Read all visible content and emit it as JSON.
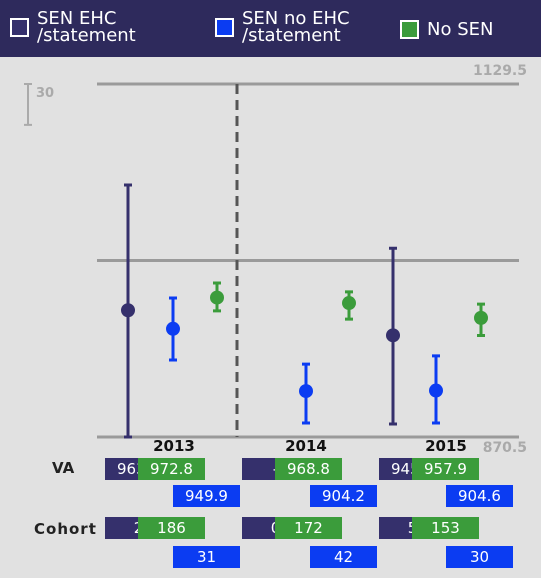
{
  "chart_data": {
    "type": "errorbar",
    "categories": [
      "2013",
      "2014",
      "2015"
    ],
    "series": [
      {
        "name": "SEN EHC\n/statement",
        "color": "#35306c",
        "values": [
          963.5,
          null,
          945.1
        ],
        "value_labels": [
          "963.5",
          "-",
          "945.1"
        ],
        "upper": [
          1055.4,
          null,
          1009
        ],
        "lower": [
          870.5,
          null,
          880
        ],
        "cohort": [
          2,
          0,
          5
        ]
      },
      {
        "name": "SEN no EHC\n/statement",
        "color": "#0b3cf2",
        "values": [
          949.9,
          904.2,
          904.6
        ],
        "upper": [
          972.5,
          924,
          930
        ],
        "lower": [
          927,
          880.8,
          880.8
        ],
        "cohort": [
          31,
          42,
          30
        ]
      },
      {
        "name": "No SEN",
        "color": "#3b9c3b",
        "values": [
          972.8,
          968.8,
          957.9
        ],
        "upper": [
          983.5,
          977,
          968
        ],
        "lower": [
          963,
          957,
          945
        ],
        "cohort": [
          186,
          172,
          153
        ]
      }
    ],
    "ylim": [
      870.5,
      1129.5
    ],
    "yticks": [
      870.5,
      1129.5
    ],
    "reference": 1000,
    "scale_bar": 30,
    "row_labels": [
      "VA",
      "Cohort"
    ]
  }
}
